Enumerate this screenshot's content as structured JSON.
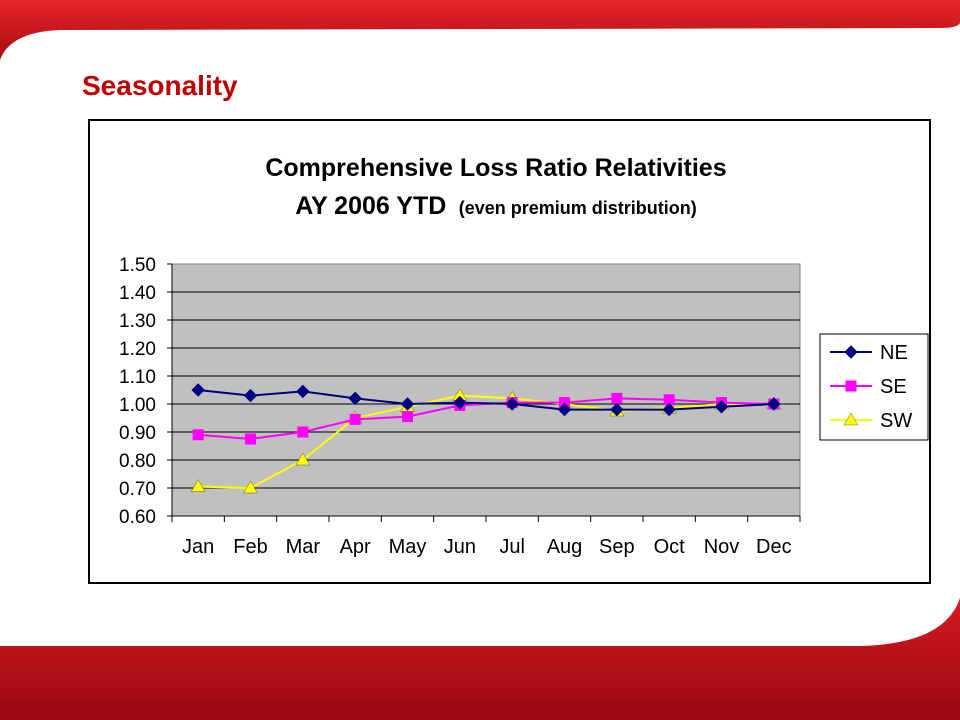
{
  "slide": {
    "title": "Seasonality",
    "colors": {
      "brand_red": "#c00000",
      "background": "#ffffff"
    }
  },
  "chart_data": {
    "type": "line",
    "title": "Comprehensive Loss Ratio Relativities",
    "subtitle_main": "AY 2006 YTD",
    "subtitle_note": "(even premium distribution)",
    "xlabel": "",
    "ylabel": "",
    "categories": [
      "Jan",
      "Feb",
      "Mar",
      "Apr",
      "May",
      "Jun",
      "Jul",
      "Aug",
      "Sep",
      "Oct",
      "Nov",
      "Dec"
    ],
    "ylim": [
      0.6,
      1.5
    ],
    "yticks": [
      "1.50",
      "1.40",
      "1.30",
      "1.20",
      "1.10",
      "1.00",
      "0.90",
      "0.80",
      "0.70",
      "0.60"
    ],
    "grid": true,
    "legend": "right",
    "plot_background": "#c0c0c0",
    "series": [
      {
        "name": "NE",
        "marker": "diamond",
        "color": "#000080",
        "values": [
          1.05,
          1.03,
          1.045,
          1.02,
          1.0,
          1.005,
          1.0,
          0.98,
          0.98,
          0.98,
          0.99,
          1.0
        ]
      },
      {
        "name": "SE",
        "marker": "square",
        "color": "#ff00ff",
        "values": [
          0.89,
          0.875,
          0.9,
          0.945,
          0.955,
          0.995,
          1.005,
          1.005,
          1.02,
          1.015,
          1.005,
          1.0
        ]
      },
      {
        "name": "SW",
        "marker": "triangle",
        "color": "#ffff00",
        "values": [
          0.705,
          0.7,
          0.8,
          0.95,
          0.99,
          1.03,
          1.02,
          1.0,
          0.975,
          0.985,
          1.0,
          1.0
        ]
      }
    ]
  }
}
